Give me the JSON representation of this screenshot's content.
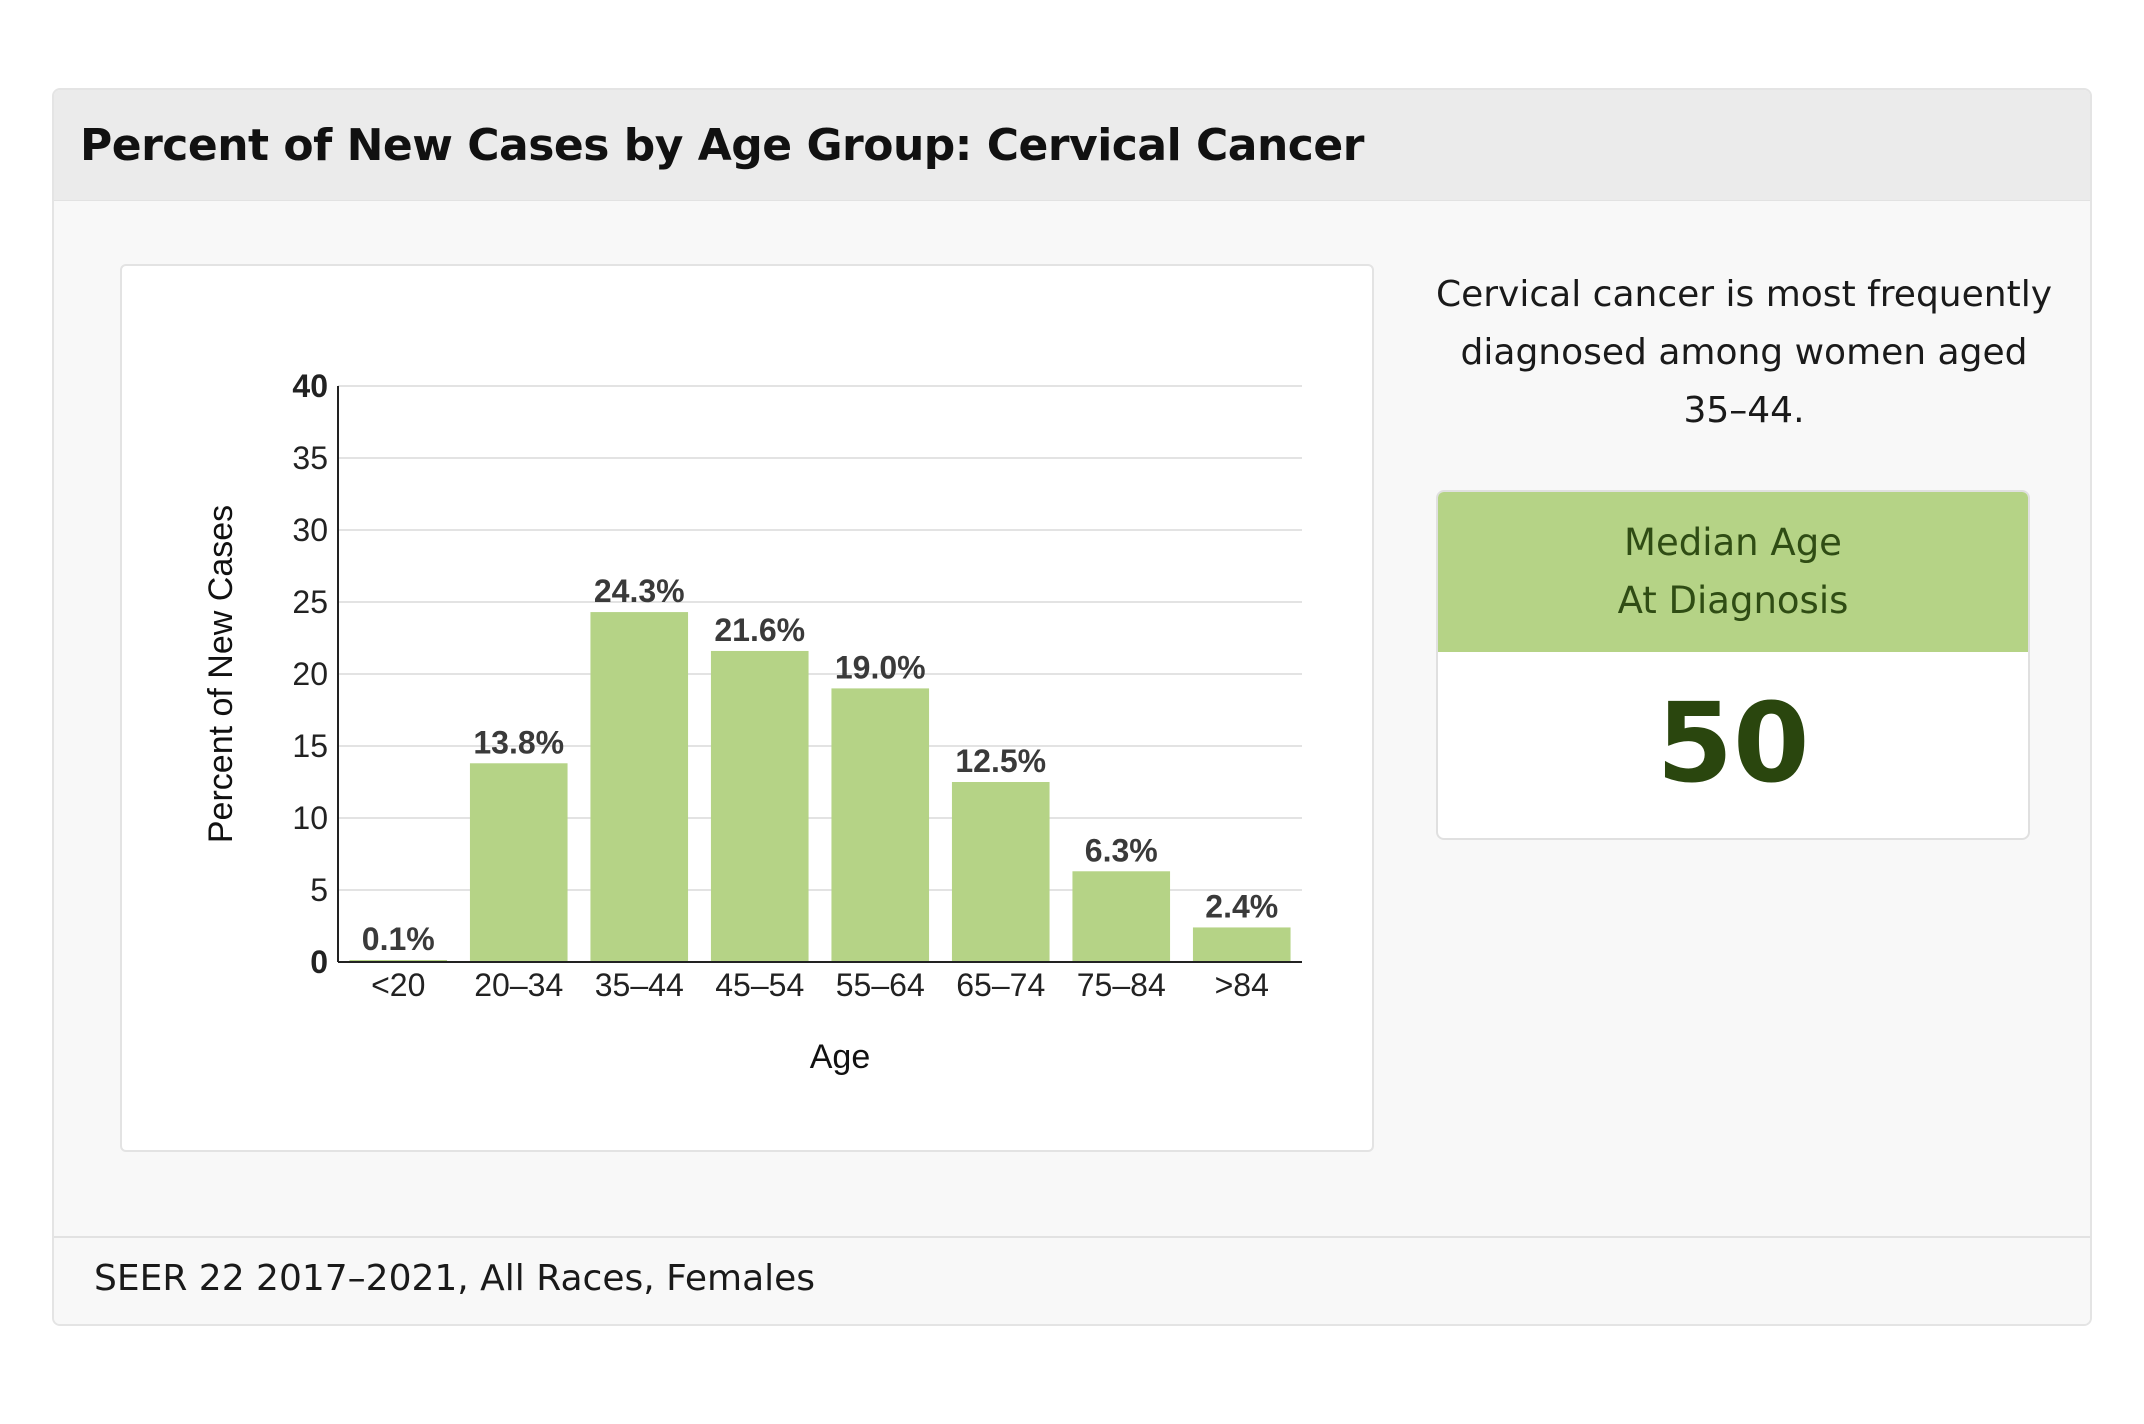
{
  "header": {
    "title": "Percent of New Cases by Age Group: Cervical Cancer"
  },
  "summary": {
    "text": "Cervical cancer is most frequently diagnosed among women aged 35–44."
  },
  "median": {
    "label_line1": "Median Age",
    "label_line2": "At Diagnosis",
    "value": "50"
  },
  "footer": {
    "text": "SEER 22 2017–2021, All Races, Females"
  },
  "colors": {
    "bar": "#b5d386",
    "median_header": "#b5d386",
    "median_value": "#2a460e",
    "grid": "#e3e3e3"
  },
  "chart_data": {
    "type": "bar",
    "title": "",
    "xlabel": "Age",
    "ylabel": "Percent of New Cases",
    "categories": [
      "<20",
      "20–34",
      "35–44",
      "45–54",
      "55–64",
      "65–74",
      "75–84",
      ">84"
    ],
    "values": [
      0.1,
      13.8,
      24.3,
      21.6,
      19.0,
      12.5,
      6.3,
      2.4
    ],
    "data_labels": [
      "0.1%",
      "13.8%",
      "24.3%",
      "21.6%",
      "19.0%",
      "12.5%",
      "6.3%",
      "2.4%"
    ],
    "ylim": [
      0,
      40
    ],
    "yticks": [
      0,
      5,
      10,
      15,
      20,
      25,
      30,
      35,
      40
    ],
    "grid": true,
    "legend": "none"
  }
}
